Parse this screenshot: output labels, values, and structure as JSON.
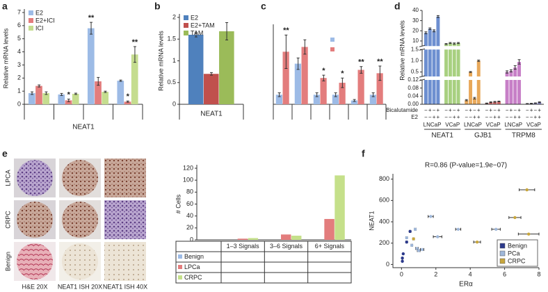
{
  "chart_data": [
    {
      "panel": "a",
      "type": "bar",
      "ylabel": "Relative mRNA levels",
      "xlabel": "NEAT1",
      "categories": [
        null,
        null,
        null,
        null
      ],
      "ylim": [
        0,
        7
      ],
      "yticks": [
        0,
        1,
        2,
        3,
        4,
        5,
        6,
        7
      ],
      "legend": "top-left",
      "series": [
        {
          "name": "E2",
          "color": "#9dbbe6",
          "values": [
            0.85,
            0.75,
            5.8,
            1.8
          ],
          "errors": [
            0.1,
            0.08,
            0.45,
            0.05
          ],
          "marks": [
            null,
            null,
            "**",
            null
          ]
        },
        {
          "name": "E2+ICI",
          "color": "#e37d7d",
          "values": [
            1.4,
            0.3,
            1.75,
            0.2
          ],
          "errors": [
            0.08,
            0.1,
            0.3,
            0.05
          ],
          "marks": [
            null,
            "*",
            null,
            "*"
          ]
        },
        {
          "name": "ICI",
          "color": "#c5dd8f",
          "values": [
            0.85,
            0.8,
            0.95,
            3.8
          ],
          "errors": [
            0.1,
            0.05,
            0.05,
            0.6
          ],
          "marks": [
            null,
            null,
            null,
            "**"
          ]
        }
      ]
    },
    {
      "panel": "b",
      "type": "bar",
      "ylabel": "Relative mRNA levels",
      "categories": [
        "NEAT1"
      ],
      "ylim": [
        0,
        2
      ],
      "yticks": [
        0,
        0.5,
        1,
        1.5,
        2
      ],
      "legend": "top-left",
      "series": [
        {
          "name": "E2",
          "color": "#4f81bd",
          "values": [
            1.6
          ],
          "errors": [
            0.05
          ]
        },
        {
          "name": "E2+TAM",
          "color": "#c0504d",
          "values": [
            0.7
          ],
          "errors": [
            0.03
          ]
        },
        {
          "name": "TAM",
          "color": "#9bbb59",
          "values": [
            1.68
          ],
          "errors": [
            0.2
          ]
        }
      ]
    },
    {
      "panel": "c",
      "type": "bar",
      "categories": [
        null,
        null,
        null,
        null,
        null,
        null
      ],
      "ylim": [
        0,
        1.6
      ],
      "legend": "top-right",
      "series": [
        {
          "color": "#9dbbe6",
          "values": [
            0.2,
            0.85,
            0.2,
            0.2,
            0.08,
            0.2
          ],
          "errors": [
            0.04,
            0.12,
            0.04,
            0.04,
            0.02,
            0.04
          ]
        },
        {
          "color": "#e37d7d",
          "values": [
            1.1,
            1.2,
            0.55,
            0.45,
            0.72,
            0.65
          ],
          "errors": [
            0.35,
            0.15,
            0.06,
            0.1,
            0.07,
            0.15
          ],
          "marks": [
            "**",
            null,
            "*",
            "*",
            "**",
            "**"
          ]
        }
      ]
    },
    {
      "panel": "d",
      "type": "bar",
      "broken_axis": true,
      "ylabel": "Relative mRNA levels",
      "ylim": [
        [
          0,
          0.12
        ],
        [
          0.3,
          1.5
        ],
        [
          5,
          40
        ]
      ],
      "yticks": [
        [
          {
            "value": 0,
            "label": "0.00"
          },
          0.04,
          0.08,
          0.12
        ],
        [
          0.5,
          {
            "value": 1,
            "label": "1.0"
          },
          1.5
        ],
        [
          10,
          20,
          30,
          40
        ]
      ],
      "treatments": [
        {
          "name": "Bicalutamide",
          "signs": [
            "−",
            "+",
            "−",
            "+"
          ]
        },
        {
          "name": "E2",
          "signs": [
            "−",
            "−",
            "+",
            "+"
          ]
        }
      ],
      "genes": [
        {
          "name": "NEAT1",
          "groups": [
            {
              "cell": "LNCaP",
              "color": "#6d8fd0",
              "values": [
                18,
                22,
                20,
                34
              ],
              "errors": [
                1,
                0.8,
                1,
                1
              ]
            },
            {
              "cell": "VCaP",
              "color": "#a8d080",
              "values": [
                7,
                8,
                7.5,
                8
              ],
              "errors": [
                0.5,
                0.5,
                0.6,
                0.5
              ]
            }
          ]
        },
        {
          "name": "GJB1",
          "groups": [
            {
              "cell": "LNCaP",
              "color": "#e8a85a",
              "values": [
                0.02,
                0.5,
                0.03,
                1.0
              ],
              "errors": [
                0.003,
                0.02,
                0.004,
                0.03
              ]
            },
            {
              "cell": "VCaP",
              "color": "#d96a6a",
              "values": [
                0.005,
                0.01,
                0.012,
                0.014
              ],
              "errors": [
                0.001,
                0.002,
                0.002,
                0.002
              ]
            }
          ]
        },
        {
          "name": "TRPM8",
          "groups": [
            {
              "cell": "LNCaP",
              "color": "#c77fc7",
              "values": [
                0.5,
                0.55,
                0.7,
                0.95
              ],
              "errors": [
                0.05,
                0.05,
                0.08,
                0.1
              ]
            },
            {
              "cell": "VCaP",
              "color": "#8a8ad0",
              "values": [
                0.003,
                0.004,
                0.006,
                0.01
              ],
              "errors": [
                0.001,
                0.001,
                0.001,
                0.002
              ]
            }
          ]
        }
      ]
    },
    {
      "panel": "e",
      "type": "bar",
      "ylabel": "# Cells",
      "legend": "table",
      "image_rows": [
        "LPCA",
        "CRPC",
        "Benign"
      ],
      "image_columns": [
        "H&E 20X",
        "NEAT1 ISH 20X",
        "NEAT1 ISH 40X"
      ],
      "categories": [
        "1–3 Signals",
        "3–6 Signals",
        "6+ Signals"
      ],
      "ylim": [
        0,
        120
      ],
      "yticks": [
        0,
        20,
        40,
        60,
        80,
        100,
        120
      ],
      "series": [
        {
          "name": "Benign",
          "color": "#9dbbe6",
          "values": [
            0,
            0,
            0
          ]
        },
        {
          "name": "LPCa",
          "color": "#e37d7d",
          "values": [
            2,
            9,
            35
          ]
        },
        {
          "name": "CRPC",
          "color": "#c5e08a",
          "values": [
            3,
            7,
            108
          ]
        }
      ]
    },
    {
      "panel": "f",
      "type": "scatter",
      "title": "R=0.86 (P-value=1.9e−07)",
      "xlabel": "ERα",
      "ylabel": "NEAT1",
      "xlim": [
        -0.5,
        8
      ],
      "xticks": [
        0,
        2,
        4,
        6,
        8
      ],
      "ylim": [
        -30,
        850
      ],
      "yticks": [
        0,
        200,
        400,
        600,
        800
      ],
      "legend": "bottom-right",
      "series": [
        {
          "name": "Benign",
          "color": "#2c3a8c",
          "x": [
            0.05,
            0.1,
            0.3,
            0.05,
            0.5
          ],
          "values": [
            60,
            100,
            210,
            30,
            310
          ],
          "xerr": [
            0.03,
            0.03,
            0.05,
            0.02,
            0.05
          ]
        },
        {
          "name": "PCa",
          "color": "#9fb7d9",
          "x": [
            0.3,
            0.6,
            0.9,
            0.8,
            1.0,
            1.2,
            1.7,
            2.1,
            3.3,
            5.5
          ],
          "values": [
            250,
            180,
            150,
            330,
            130,
            140,
            450,
            260,
            330,
            330
          ],
          "xerr": [
            0.05,
            0.05,
            0.08,
            0.05,
            0.08,
            0.1,
            0.15,
            0.25,
            0.15,
            0.25
          ]
        },
        {
          "name": "CRPC",
          "color": "#c8a63c",
          "x": [
            0.7,
            4.4,
            6.6,
            7.3,
            7.4
          ],
          "values": [
            240,
            210,
            440,
            700,
            285
          ],
          "xerr": [
            0.05,
            0.2,
            0.35,
            0.45,
            0.6
          ]
        }
      ]
    }
  ]
}
